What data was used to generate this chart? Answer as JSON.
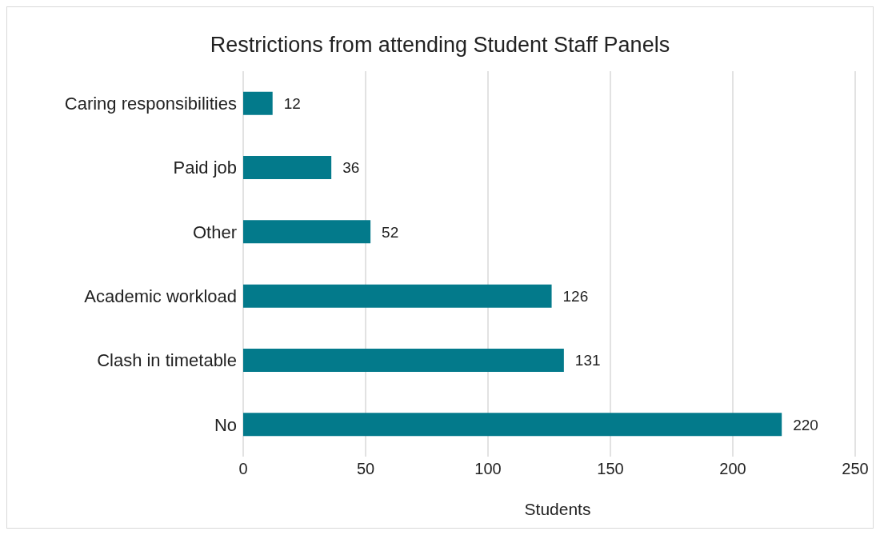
{
  "chart_data": {
    "type": "bar",
    "orientation": "horizontal",
    "title": "Restrictions from attending Student Staff Panels",
    "xlabel": "Students",
    "categories": [
      "Caring responsibilities",
      "Paid job",
      "Other",
      "Academic workload",
      "Clash in timetable",
      "No"
    ],
    "values": [
      12,
      36,
      52,
      126,
      131,
      220
    ],
    "color": "#037a8b",
    "xlim": [
      0,
      250
    ],
    "xticks": [
      0,
      50,
      100,
      150,
      200,
      250
    ],
    "grid": "x",
    "data_labels": true
  }
}
